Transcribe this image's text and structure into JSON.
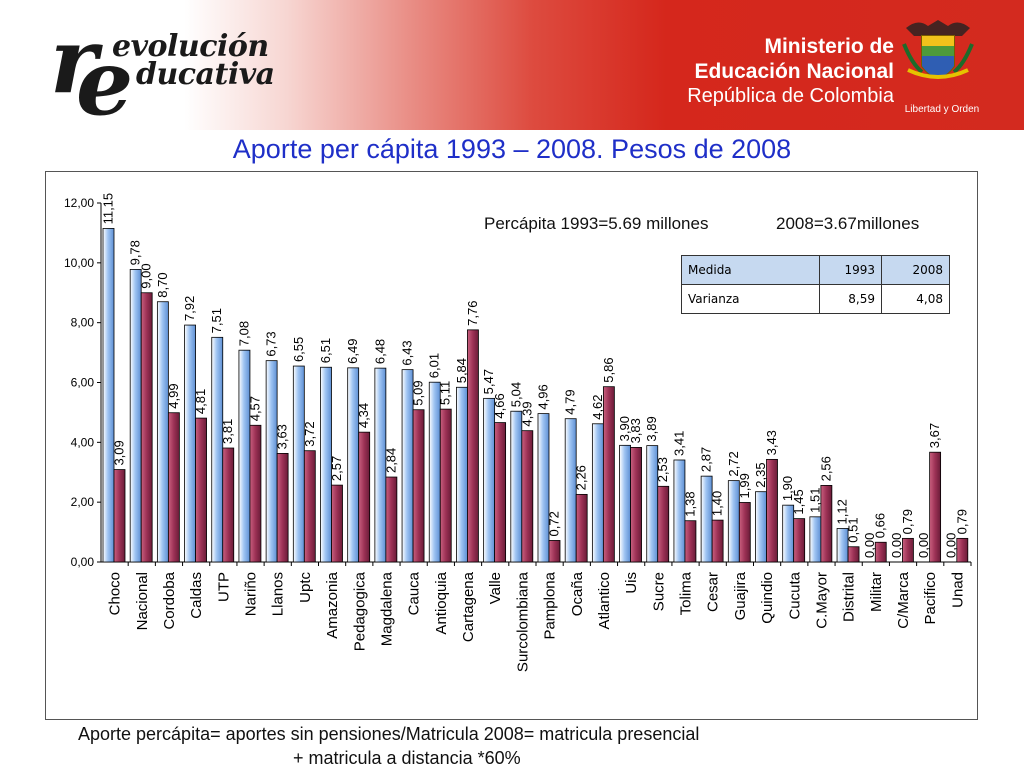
{
  "header": {
    "logo_big_r": "r",
    "logo_big_e": "e",
    "logo_line1": "evolución",
    "logo_line2": "ducativa",
    "ministry_line1": "Ministerio de",
    "ministry_line2": "Educación Nacional",
    "ministry_line3": "República de Colombia",
    "motto": "Libertad y Orden"
  },
  "title": "Aporte per cápita 1993 – 2008. Pesos de 2008",
  "note_left": "Percápita 1993=5.69 millones",
  "note_right": "2008=3.67millones",
  "variance_table": {
    "header": [
      "Medida",
      "1993",
      "2008"
    ],
    "row": [
      "Varianza",
      "8,59",
      "4,08"
    ]
  },
  "footer": {
    "line1": "Aporte percápita= aportes sin pensiones/Matricula 2008= matricula presencial",
    "line2": "+ matricula a distancia *60%"
  },
  "colors": {
    "series_1993": "#9fc4f2",
    "series_2008": "#9c3155",
    "title": "#1f2fc8"
  },
  "chart_data": {
    "type": "bar",
    "ylim": [
      0,
      12
    ],
    "y_ticks": [
      "0,00",
      "2,00",
      "4,00",
      "6,00",
      "8,00",
      "10,00",
      "12,00"
    ],
    "categories": [
      "Choco",
      "Nacional",
      "Cordoba",
      "Caldas",
      "UTP",
      "Nariño",
      "Llanos",
      "Uptc",
      "Amazonia",
      "Pedagogica",
      "Magdalena",
      "Cauca",
      "Antioquia",
      "Cartagena",
      "Valle",
      "Surcolombiana",
      "Pamplona",
      "Ocaña",
      "Atlantico",
      "Uis",
      "Sucre",
      "Tolima",
      "Cesar",
      "Guajira",
      "Quindio",
      "Cucuta",
      "C.Mayor",
      "Distrital",
      "Militar",
      "C/Marca",
      "Pacifico",
      "Unad"
    ],
    "series": [
      {
        "values": [
          11.15,
          9.78,
          8.7,
          7.92,
          7.51,
          7.08,
          6.73,
          6.55,
          6.51,
          6.49,
          6.48,
          6.43,
          6.01,
          5.84,
          5.47,
          5.04,
          4.96,
          4.79,
          4.62,
          3.9,
          3.89,
          3.41,
          2.87,
          2.72,
          2.35,
          1.9,
          1.51,
          1.12,
          0.0,
          0.0,
          0.0,
          0.0
        ],
        "labels": [
          "11,15",
          "9,78",
          "8,70",
          "7,92",
          "7,51",
          "7,08",
          "6,73",
          "6,55",
          "6,51",
          "6,49",
          "6,48",
          "6,43",
          "6,01",
          "5,84",
          "5,47",
          "5,04",
          "4,96",
          "4,79",
          "4,62",
          "3,90",
          "3,89",
          "3,41",
          "2,87",
          "2,72",
          "2,35",
          "1,90",
          "1,51",
          "1,12",
          "0,00",
          "0,00",
          "0,00",
          "0,00"
        ]
      },
      {
        "values": [
          3.09,
          9.0,
          4.99,
          4.81,
          3.81,
          4.57,
          3.63,
          3.72,
          2.57,
          4.34,
          2.84,
          5.09,
          5.11,
          7.76,
          4.66,
          4.39,
          0.72,
          2.26,
          5.86,
          3.83,
          2.53,
          1.38,
          1.4,
          1.99,
          3.43,
          1.45,
          2.56,
          0.51,
          0.66,
          0.79,
          3.67,
          0.79
        ],
        "labels": [
          "3,09",
          "9,00",
          "4,99",
          "4,81",
          "3,81",
          "4,57",
          "3,63",
          "3,72",
          "2,57",
          "4,34",
          "2,84",
          "5,09",
          "5,11",
          "7,76",
          "4,66",
          "4,39",
          "0,72",
          "2,26",
          "5,86",
          "3,83",
          "2,53",
          "1,38",
          "1,40",
          "1,99",
          "3,43",
          "1,45",
          "2,56",
          "0,51",
          "0,66",
          "0,79",
          "3,67",
          "0,79"
        ]
      }
    ],
    "grid": false,
    "legend": "none"
  }
}
